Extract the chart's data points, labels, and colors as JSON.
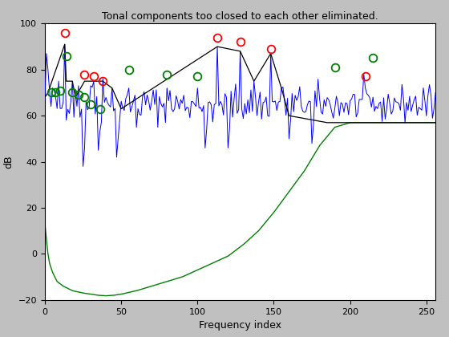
{
  "title": "Tonal components too closed to each other eliminated.",
  "xlabel": "Frequency index",
  "ylabel": "dB",
  "xlim": [
    0,
    256
  ],
  "ylim": [
    -20,
    100
  ],
  "background_color": "#c0c0c0",
  "axes_bg": "#ffffff",
  "red_circles_x": [
    13,
    26,
    32,
    38,
    113,
    128,
    148,
    210
  ],
  "red_circles_y": [
    96,
    78,
    77,
    75,
    94,
    92,
    89,
    77
  ],
  "green_circles_x": [
    4,
    7,
    10,
    14,
    18,
    22,
    26,
    30,
    36,
    55,
    80,
    100,
    190,
    215
  ],
  "green_circles_y": [
    70,
    70,
    71,
    86,
    70,
    69,
    68,
    65,
    63,
    80,
    78,
    77,
    81,
    85
  ],
  "seed": 42
}
